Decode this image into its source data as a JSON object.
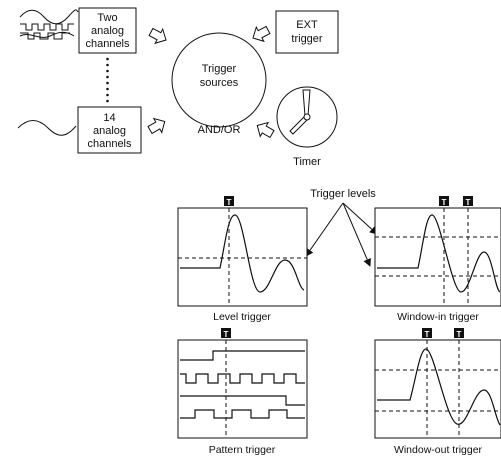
{
  "sources": {
    "two_analog_channels": [
      "Two",
      "analog",
      "channels"
    ],
    "fourteen_analog_channels": [
      "14",
      "analog",
      "channels"
    ],
    "ext_trigger": [
      "EXT",
      "trigger"
    ],
    "trigger_sources": [
      "Trigger",
      "sources"
    ],
    "and_or": "AND/OR",
    "timer": "Timer"
  },
  "trigger_levels_label": "Trigger levels",
  "marker_letter": "T",
  "panels": {
    "level": "Level trigger",
    "window_in": "Window-in trigger",
    "pattern": "Pattern trigger",
    "window_out": "Window-out trigger"
  },
  "colors": {
    "line": "#111111",
    "background": "#ffffff"
  }
}
